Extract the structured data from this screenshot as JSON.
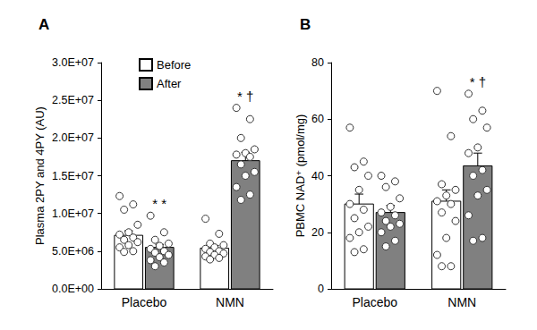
{
  "chart_data": [
    {
      "type": "bar",
      "title": "A",
      "y_label": "Plasma 2PY and 4PY (AU)",
      "categories": [
        "Placebo",
        "NMN"
      ],
      "series": [
        {
          "name": "Before",
          "color": "#ffffff",
          "values": [
            7100000,
            5400000
          ],
          "errors": [
            600000,
            350000
          ],
          "points": [
            [
              12300000,
              11200000,
              10500000,
              8500000,
              7500000,
              7200000,
              6800000,
              6500000,
              6200000,
              5800000,
              5500000,
              5000000,
              4900000
            ],
            [
              9300000,
              7300000,
              6000000,
              5800000,
              5500000,
              5300000,
              5000000,
              4900000,
              4700000,
              4500000,
              4300000,
              4100000,
              3900000
            ]
          ]
        },
        {
          "name": "After",
          "color": "#808080",
          "values": [
            5500000,
            17000000
          ],
          "errors": [
            400000,
            1100000
          ],
          "points": [
            [
              9700000,
              7500000,
              6500000,
              6000000,
              5700000,
              5300000,
              5000000,
              4800000,
              4500000,
              4200000,
              3800000,
              3500000,
              3000000
            ],
            [
              24000000,
              22500000,
              20000000,
              18500000,
              18000000,
              17800000,
              17500000,
              16500000,
              15500000,
              15000000,
              13500000,
              12500000,
              11800000
            ]
          ]
        }
      ],
      "annotations": [
        {
          "category": "Placebo",
          "series": "After",
          "text": "* *"
        },
        {
          "category": "NMN",
          "series": "After",
          "text": "* †"
        }
      ],
      "ylim": [
        0,
        30000000
      ],
      "yticks": [
        {
          "value": 0,
          "label": "0.0E+00"
        },
        {
          "value": 5000000,
          "label": "5.0E+06"
        },
        {
          "value": 10000000,
          "label": "1.0E+07"
        },
        {
          "value": 15000000,
          "label": "1.5E+07"
        },
        {
          "value": 20000000,
          "label": "2.0E+07"
        },
        {
          "value": 25000000,
          "label": "2.5E+07"
        },
        {
          "value": 30000000,
          "label": "3.0E+07"
        }
      ],
      "grid": false,
      "legend": "upper left"
    },
    {
      "type": "bar",
      "title": "B",
      "y_label": "PBMC NAD⁺ (pmol/mg)",
      "categories": [
        "Placebo",
        "NMN"
      ],
      "series": [
        {
          "name": "Before",
          "color": "#ffffff",
          "values": [
            30,
            31
          ],
          "errors": [
            3.5,
            4
          ],
          "points": [
            [
              57,
              45,
              43,
              40,
              35,
              30,
              28,
              25,
              22,
              20,
              18,
              14,
              13
            ],
            [
              70,
              54,
              37,
              35,
              33,
              31,
              30,
              27,
              24,
              18,
              12,
              8,
              8
            ]
          ]
        },
        {
          "name": "After",
          "color": "#808080",
          "values": [
            27,
            43.5
          ],
          "errors": [
            2.5,
            4.5
          ],
          "points": [
            [
              40,
              38,
              36,
              32,
              29,
              27,
              26,
              24,
              23,
              22,
              20,
              17,
              15
            ],
            [
              69,
              63,
              60,
              57,
              50,
              48,
              42,
              40,
              35,
              33,
              26,
              18,
              17
            ]
          ]
        }
      ],
      "annotations": [
        {
          "category": "NMN",
          "series": "After",
          "text": "* †"
        }
      ],
      "ylim": [
        0,
        80
      ],
      "yticks": [
        0,
        20,
        40,
        60,
        80
      ],
      "grid": false
    }
  ]
}
